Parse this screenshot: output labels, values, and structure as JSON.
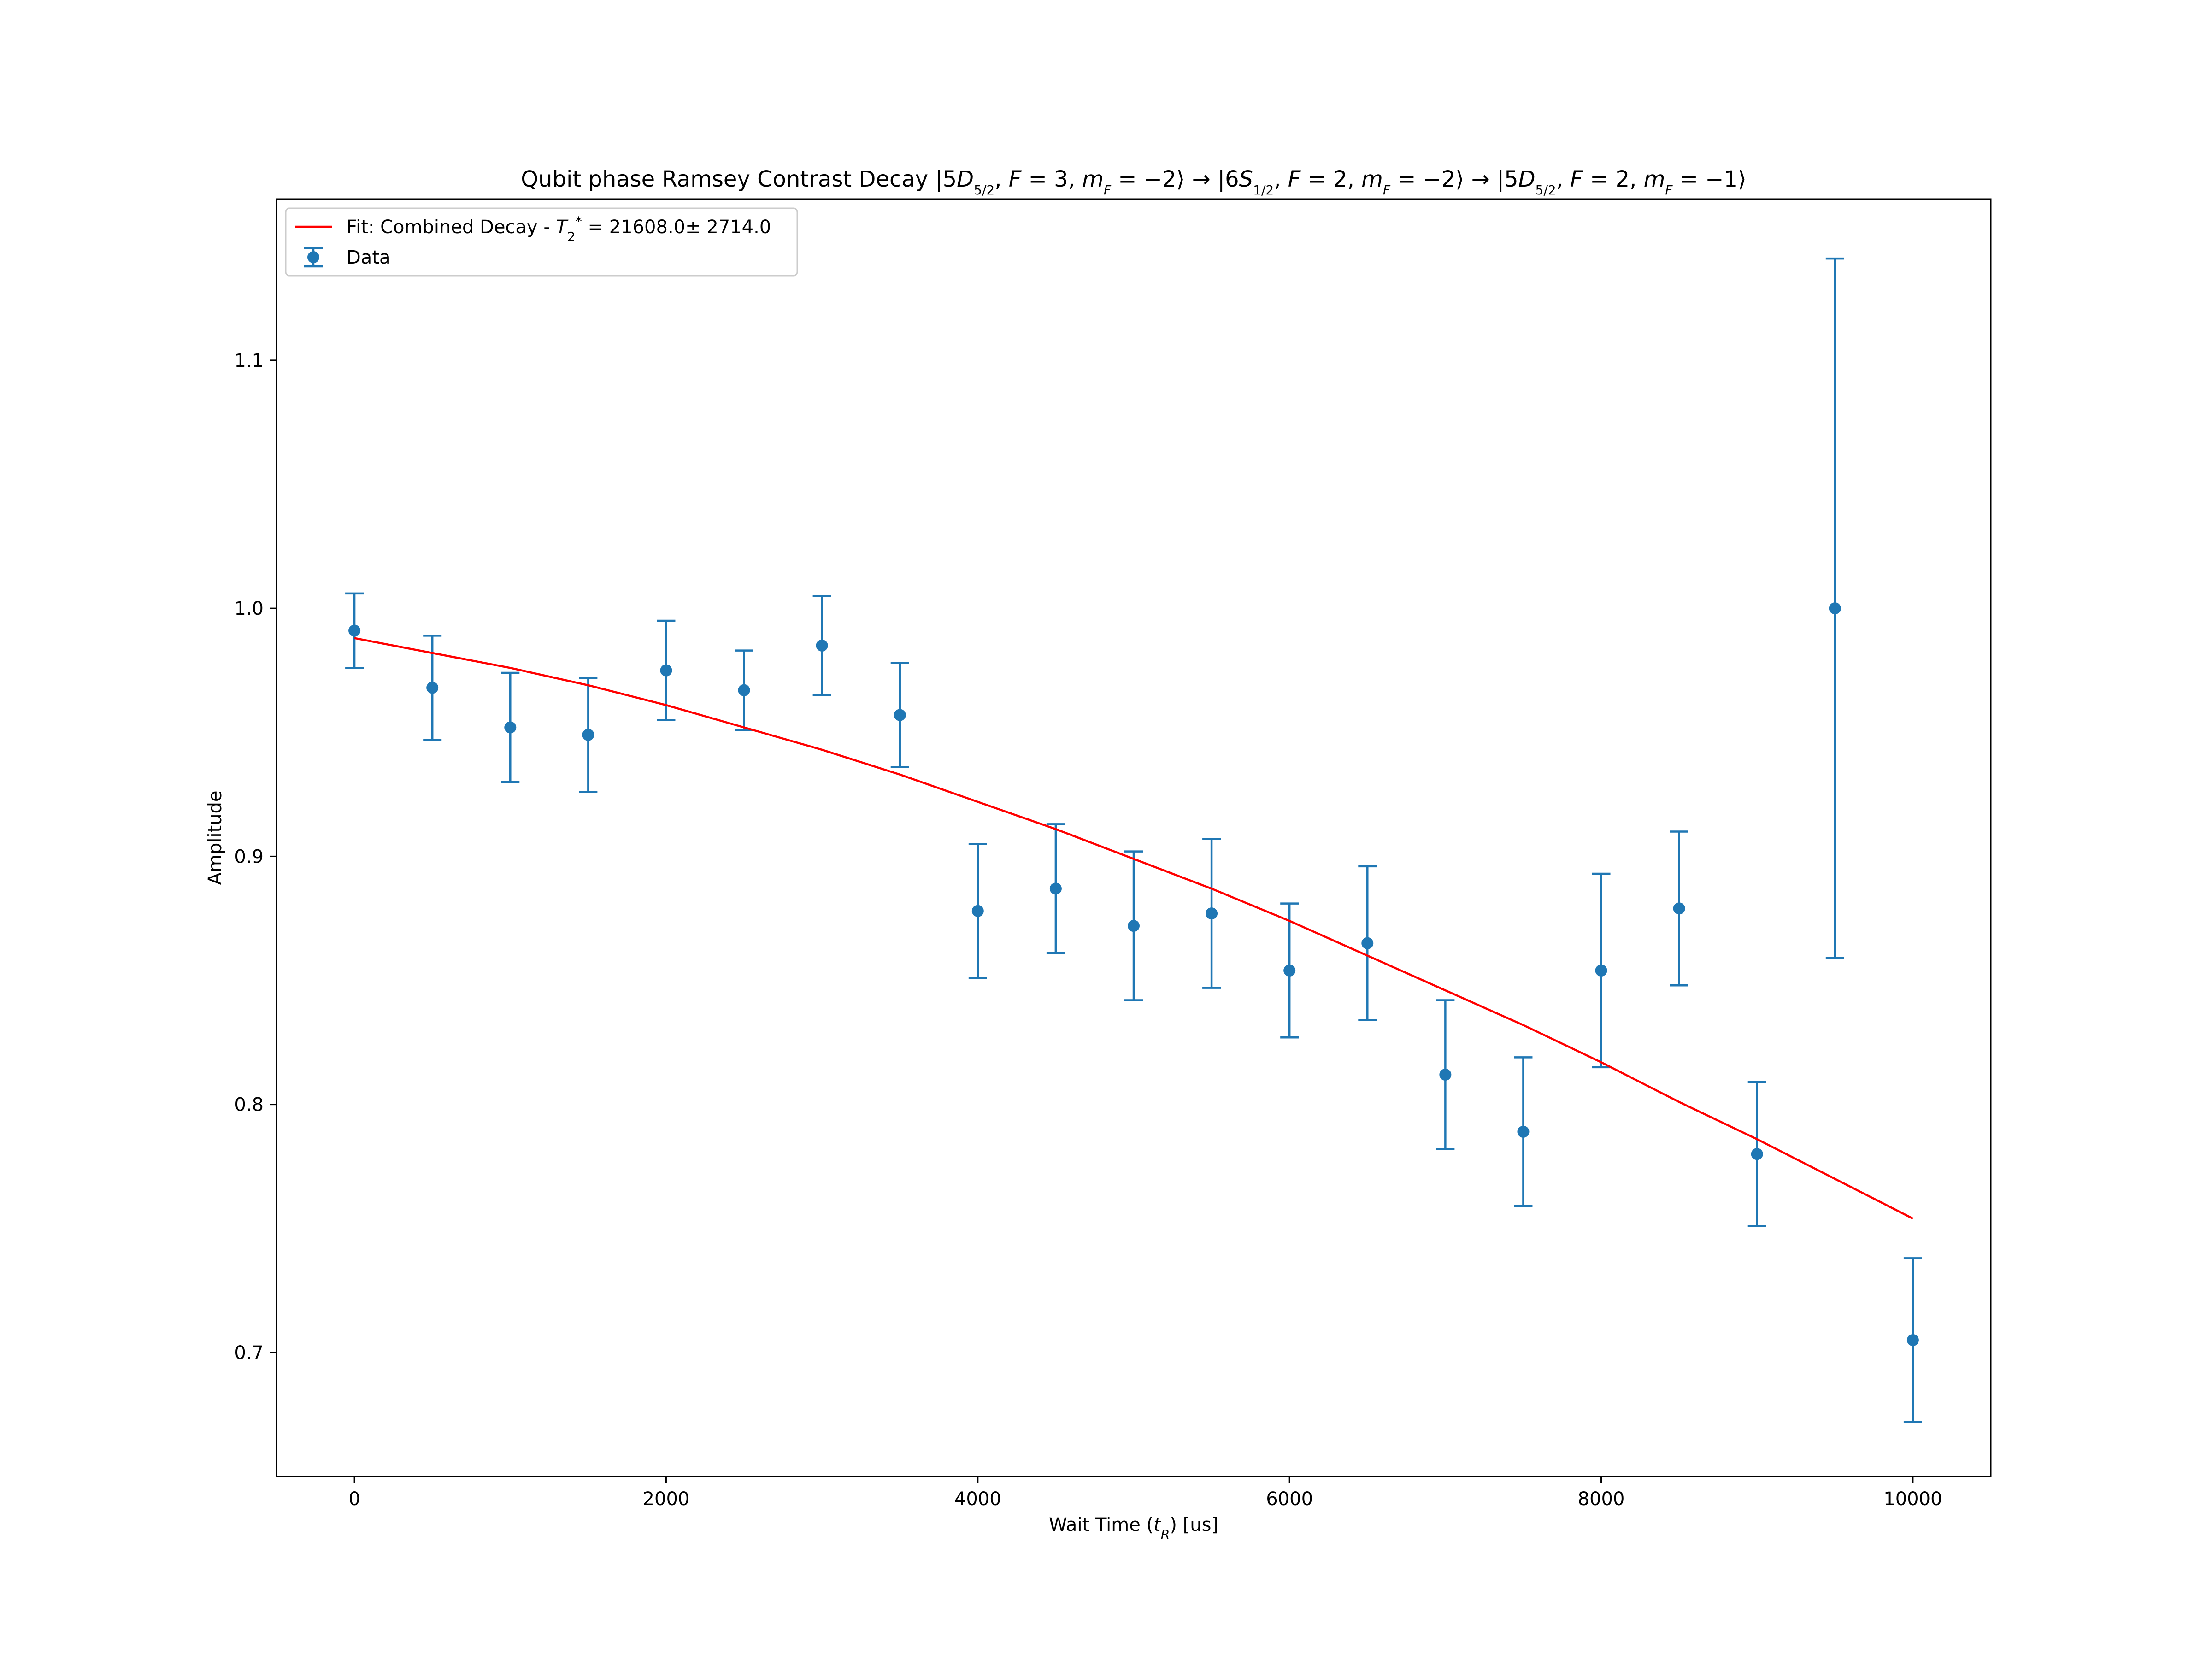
{
  "chart_data": {
    "type": "scatter",
    "title": {
      "prefix": "Qubit phase Ramsey Contrast Decay ",
      "state1": "|5D5/2, F = 3, mF = −2⟩",
      "arrow1": " → ",
      "state2": "|6S1/2, F = 2, mF = −2⟩",
      "arrow2": " → ",
      "state3": "|5D5/2, F = 2, mF = −1⟩"
    },
    "xlabel": "Wait Time (tR) [us]",
    "ylabel": "Amplitude",
    "xlim": [
      -500,
      10500
    ],
    "ylim": [
      0.65,
      1.165
    ],
    "xticks": [
      0,
      2000,
      4000,
      6000,
      8000,
      10000
    ],
    "xtick_labels": [
      "0",
      "2000",
      "4000",
      "6000",
      "8000",
      "10000"
    ],
    "yticks": [
      0.7,
      0.8,
      0.9,
      1.0,
      1.1
    ],
    "ytick_labels": [
      "0.7",
      "0.8",
      "0.9",
      "1.0",
      "1.1"
    ],
    "grid": false,
    "legend_position": "top-left",
    "legend": {
      "fit_label": "Fit: Combined Decay - T2* = 21608.0± 2714.0",
      "data_label": "Data"
    },
    "colors": {
      "data": "#1f77b4",
      "fit": "#ff0000"
    },
    "series": [
      {
        "name": "Data",
        "kind": "errorbar",
        "x": [
          0,
          500,
          1000,
          1500,
          2000,
          2500,
          3000,
          3500,
          4000,
          4500,
          5000,
          5500,
          6000,
          6500,
          7000,
          7500,
          8000,
          8500,
          9000,
          9500,
          10000
        ],
        "y": [
          0.991,
          0.968,
          0.952,
          0.949,
          0.975,
          0.967,
          0.985,
          0.957,
          0.878,
          0.887,
          0.872,
          0.877,
          0.854,
          0.865,
          0.812,
          0.789,
          0.854,
          0.879,
          0.78,
          1.0,
          0.705
        ],
        "yerr": [
          0.015,
          0.021,
          0.022,
          0.023,
          0.02,
          0.016,
          0.02,
          0.021,
          0.027,
          0.026,
          0.03,
          0.03,
          0.027,
          0.031,
          0.03,
          0.03,
          0.039,
          0.031,
          0.029,
          0.141,
          0.033
        ]
      },
      {
        "name": "Fit: Combined Decay - T2* = 21608.0± 2714.0",
        "kind": "line",
        "x": [
          0,
          500,
          1000,
          1500,
          2000,
          2500,
          3000,
          3500,
          4000,
          4500,
          5000,
          5500,
          6000,
          6500,
          7000,
          7500,
          8000,
          8500,
          9000,
          9500,
          10000
        ],
        "y": [
          0.988,
          0.982,
          0.976,
          0.969,
          0.961,
          0.952,
          0.943,
          0.933,
          0.922,
          0.911,
          0.899,
          0.887,
          0.874,
          0.86,
          0.846,
          0.832,
          0.817,
          0.801,
          0.786,
          0.77,
          0.754
        ]
      }
    ]
  }
}
